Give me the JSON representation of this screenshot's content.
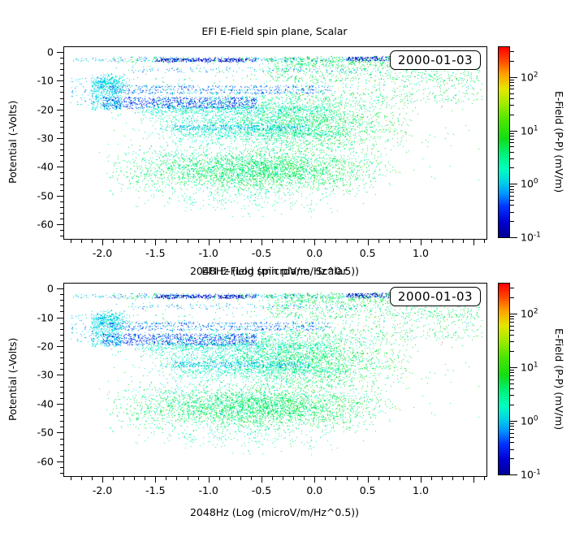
{
  "figure": {
    "background": "#ffffff",
    "axis_color": "#000000",
    "note": "Two stacked scatter panels showing identical data; top panel x-axis label overlaps bottom panel title."
  },
  "panels": [
    {
      "title": "EFI  E-Field spin plane, Scalar",
      "xlabel": "2048Hz (Log (microV/m/Hz^0.5))",
      "ylabel": "Potential (-Volts)",
      "colorbar_label": "E-Field (P-P) (mV/m)",
      "date_label": "2000-01-03"
    },
    {
      "title": "EFI  E-Field spin plane, Scalar",
      "xlabel": "2048Hz (Log (microV/m/Hz^0.5))",
      "ylabel": "Potential (-Volts)",
      "colorbar_label": "E-Field (P-P) (mV/m)",
      "date_label": "2000-01-03"
    }
  ],
  "chart_data": {
    "type": "scatter",
    "title": "EFI  E-Field spin plane, Scalar",
    "xlabel": "2048Hz (Log (microV/m/Hz^0.5))",
    "ylabel": "Potential (-Volts)",
    "annotation": "2000-01-03",
    "panels_identical": true,
    "x_axis": {
      "min": -2.36,
      "max": 1.62,
      "major_ticks": [
        -2.0,
        -1.5,
        -1.0,
        -0.5,
        0.0,
        0.5,
        1.0,
        1.5
      ],
      "major_labels": [
        "-2.0",
        "-1.5",
        "-1.0",
        "-0.5",
        "0.0",
        "0.5",
        "1.0",
        ""
      ],
      "minor_step": 0.1
    },
    "y_axis": {
      "top": 1.7,
      "bottom": -65.1,
      "major_ticks": [
        0,
        -10,
        -20,
        -30,
        -40,
        -50,
        -60
      ],
      "major_labels": [
        "0",
        "-10",
        "-20",
        "-30",
        "-40",
        "-50",
        "-60"
      ],
      "minor_step": 2
    },
    "colorbar": {
      "label": "E-Field (P-P) (mV/m)",
      "scale": "log10",
      "log_min": -1,
      "log_max": 2.56,
      "decade_base": "10",
      "decades": [
        2,
        1,
        0,
        -1
      ],
      "stops": [
        [
          0.0,
          "#000096"
        ],
        [
          0.08,
          "#0000D2"
        ],
        [
          0.16,
          "#0032FF"
        ],
        [
          0.23,
          "#0096FF"
        ],
        [
          0.29,
          "#00D2E6"
        ],
        [
          0.36,
          "#00FFBE"
        ],
        [
          0.44,
          "#00F078"
        ],
        [
          0.52,
          "#14DC14"
        ],
        [
          0.62,
          "#50E600"
        ],
        [
          0.7,
          "#A0EB00"
        ],
        [
          0.78,
          "#E6E600"
        ],
        [
          0.86,
          "#FFA000"
        ],
        [
          0.93,
          "#FF4600"
        ],
        [
          1.0,
          "#FF0000"
        ]
      ]
    },
    "seed": 1337,
    "clusters": [
      {
        "name": "top-band-mix",
        "n": 500,
        "x": {
          "t": "u",
          "a": -1.95,
          "b": 1.5
        },
        "y": {
          "t": "u",
          "a": -3.4,
          "b": -1.6
        },
        "v": [
          -0.5,
          0.95
        ]
      },
      {
        "name": "top-band-dark-mid",
        "n": 300,
        "x": {
          "t": "u",
          "a": -1.5,
          "b": -0.55
        },
        "y": {
          "t": "u",
          "a": -3.3,
          "b": -2.1
        },
        "v": [
          -1.0,
          -0.5
        ]
      },
      {
        "name": "top-band-dark-right",
        "n": 420,
        "x": {
          "t": "u",
          "a": 0.3,
          "b": 1.52
        },
        "y": {
          "t": "u",
          "a": -3.0,
          "b": -1.5
        },
        "v": [
          -1.0,
          -0.45
        ]
      },
      {
        "name": "top-band-green",
        "n": 320,
        "x": {
          "t": "u",
          "a": -0.3,
          "b": 1.52
        },
        "y": {
          "t": "u",
          "a": -4.8,
          "b": -1.4
        },
        "v": [
          0.45,
          0.95
        ]
      },
      {
        "name": "right-green-upper",
        "n": 550,
        "x": {
          "t": "u",
          "a": -0.45,
          "b": 1.55
        },
        "y": {
          "t": "u",
          "a": -10.0,
          "b": -3.0
        },
        "v": [
          0.35,
          0.9
        ]
      },
      {
        "name": "right-green-mid",
        "n": 260,
        "x": {
          "t": "u",
          "a": -0.2,
          "b": 1.58
        },
        "y": {
          "t": "u",
          "a": -18.0,
          "b": -9.0
        },
        "v": [
          0.4,
          0.9
        ]
      },
      {
        "name": "row-minus6",
        "n": 140,
        "x": {
          "t": "u",
          "a": -1.75,
          "b": 0.5
        },
        "y": {
          "t": "u",
          "a": -7.0,
          "b": -5.3
        },
        "v": [
          -0.5,
          0.4
        ]
      },
      {
        "name": "cyan-blob-left",
        "n": 400,
        "x": {
          "t": "g",
          "a": -1.95,
          "b": 0.09,
          "c": [
            -2.12,
            -1.72
          ]
        },
        "y": {
          "t": "g",
          "a": -11.0,
          "b": 1.7,
          "c": [
            -14.6,
            -7.4
          ]
        },
        "v": [
          -0.15,
          0.3
        ]
      },
      {
        "name": "blue-row-12",
        "n": 180,
        "x": {
          "t": "u",
          "a": -2.05,
          "b": 0.15
        },
        "y": {
          "t": "u",
          "a": -12.3,
          "b": -11.6
        },
        "v": [
          -0.65,
          0.1
        ]
      },
      {
        "name": "blue-row-13",
        "n": 180,
        "x": {
          "t": "u",
          "a": -2.0,
          "b": 0.15
        },
        "y": {
          "t": "u",
          "a": -13.4,
          "b": -12.7
        },
        "v": [
          -0.65,
          0.1
        ]
      },
      {
        "name": "blue-row-14",
        "n": 160,
        "x": {
          "t": "u",
          "a": -1.9,
          "b": 0.1
        },
        "y": {
          "t": "u",
          "a": -14.4,
          "b": -13.7
        },
        "v": [
          -0.65,
          0.1
        ]
      },
      {
        "name": "blue-band-17",
        "n": 820,
        "x": {
          "t": "u",
          "a": -2.0,
          "b": -0.55
        },
        "y": {
          "t": "u",
          "a": -19.6,
          "b": -15.6
        },
        "v": [
          -0.75,
          -0.15
        ]
      },
      {
        "name": "cyan-wing-17",
        "n": 220,
        "x": {
          "t": "u",
          "a": -2.1,
          "b": -1.82
        },
        "y": {
          "t": "u",
          "a": -20.0,
          "b": -13.5
        },
        "v": [
          -0.1,
          0.25
        ]
      },
      {
        "name": "teal-band-20",
        "n": 350,
        "x": {
          "t": "u",
          "a": -1.7,
          "b": 0.2
        },
        "y": {
          "t": "u",
          "a": -21.2,
          "b": -18.9
        },
        "v": [
          0.05,
          0.4
        ]
      },
      {
        "name": "mid-cloud-left",
        "n": 1500,
        "x": {
          "t": "g",
          "a": -0.75,
          "b": 0.5,
          "c": [
            -1.55,
            0.2
          ]
        },
        "y": {
          "t": "g",
          "a": -24.0,
          "b": 5.0,
          "c": [
            -34.5,
            -13.8
          ]
        },
        "v": [
          -0.05,
          0.6
        ]
      },
      {
        "name": "mid-cloud-right",
        "n": 1500,
        "x": {
          "t": "g",
          "a": 0.0,
          "b": 0.4,
          "c": [
            -0.7,
            0.9
          ]
        },
        "y": {
          "t": "g",
          "a": -25.0,
          "b": 5.2,
          "c": [
            -34.5,
            -14.0
          ]
        },
        "v": [
          0.25,
          0.95
        ]
      },
      {
        "name": "mid-right-sparse",
        "n": 30,
        "x": {
          "t": "u",
          "a": 0.4,
          "b": 1.3
        },
        "y": {
          "t": "u",
          "a": -42.0,
          "b": -18.0
        },
        "v": [
          0.45,
          0.95
        ]
      },
      {
        "name": "cyan-streak-26",
        "n": 300,
        "x": {
          "t": "u",
          "a": -1.35,
          "b": -0.05
        },
        "y": {
          "t": "u",
          "a": -27.3,
          "b": -25.3
        },
        "v": [
          -0.35,
          0.25
        ]
      },
      {
        "name": "teal-streak-28",
        "n": 200,
        "x": {
          "t": "u",
          "a": -1.3,
          "b": 0.3
        },
        "y": {
          "t": "u",
          "a": -29.3,
          "b": -27.7
        },
        "v": [
          0.1,
          0.45
        ]
      },
      {
        "name": "lower-cloud-green",
        "n": 2700,
        "x": {
          "t": "g",
          "a": -0.55,
          "b": 0.58,
          "c": [
            -2.05,
            0.8
          ]
        },
        "y": {
          "t": "g",
          "a": -41.0,
          "b": 3.6,
          "c": [
            -49.5,
            -33.0
          ]
        },
        "v": [
          0.3,
          0.95
        ]
      },
      {
        "name": "lower-cloud-cyan",
        "n": 300,
        "x": {
          "t": "g",
          "a": -0.9,
          "b": 0.5,
          "c": [
            -1.9,
            0.2
          ]
        },
        "y": {
          "t": "g",
          "a": -40.0,
          "b": 3.5,
          "c": [
            -48.0,
            -33.0
          ]
        },
        "v": [
          0.05,
          0.35
        ]
      },
      {
        "name": "lower-right-sparse",
        "n": 30,
        "x": {
          "t": "u",
          "a": 0.5,
          "b": 1.55
        },
        "y": {
          "t": "u",
          "a": -46.0,
          "b": -18.0
        },
        "v": [
          0.4,
          0.9
        ]
      },
      {
        "name": "bottom-tail",
        "n": 240,
        "x": {
          "t": "g",
          "a": -0.7,
          "b": 0.55,
          "c": [
            -1.7,
            0.5
          ]
        },
        "y": {
          "t": "g",
          "a": -50.5,
          "b": 2.8,
          "c": [
            -58.5,
            -47.0
          ]
        },
        "v": [
          0.05,
          0.7
        ]
      },
      {
        "name": "far-left-column",
        "n": 80,
        "x": {
          "t": "u",
          "a": -2.3,
          "b": -2.0
        },
        "y": {
          "t": "u",
          "a": -18.5,
          "b": -9.0
        },
        "v": [
          -0.3,
          0.25
        ]
      },
      {
        "name": "far-left-top-dots",
        "n": 30,
        "x": {
          "t": "u",
          "a": -2.28,
          "b": -1.95
        },
        "y": {
          "t": "u",
          "a": -3.2,
          "b": -1.8
        },
        "v": [
          -0.2,
          0.3
        ]
      },
      {
        "name": "yellow-specks",
        "n": 70,
        "x": {
          "t": "u",
          "a": -0.5,
          "b": 0.9
        },
        "y": {
          "t": "u",
          "a": -42.0,
          "b": -4.0
        },
        "v": [
          1.5,
          1.95
        ]
      },
      {
        "name": "hot-specks",
        "n": 8,
        "x": {
          "t": "u",
          "a": -0.5,
          "b": 1.3
        },
        "y": {
          "t": "u",
          "a": -40.0,
          "b": -5.0
        },
        "v": [
          2.0,
          2.5
        ]
      },
      {
        "name": "haze-upper",
        "n": 400,
        "x": {
          "t": "u",
          "a": -1.95,
          "b": 1.55
        },
        "y": {
          "t": "u",
          "a": -18.0,
          "b": -2.0
        },
        "v": [
          -0.2,
          0.85
        ]
      },
      {
        "name": "haze-lower",
        "n": 500,
        "x": {
          "t": "u",
          "a": -1.95,
          "b": 0.6
        },
        "y": {
          "t": "u",
          "a": -50.0,
          "b": -18.0
        },
        "v": [
          0.0,
          0.85
        ]
      }
    ]
  }
}
